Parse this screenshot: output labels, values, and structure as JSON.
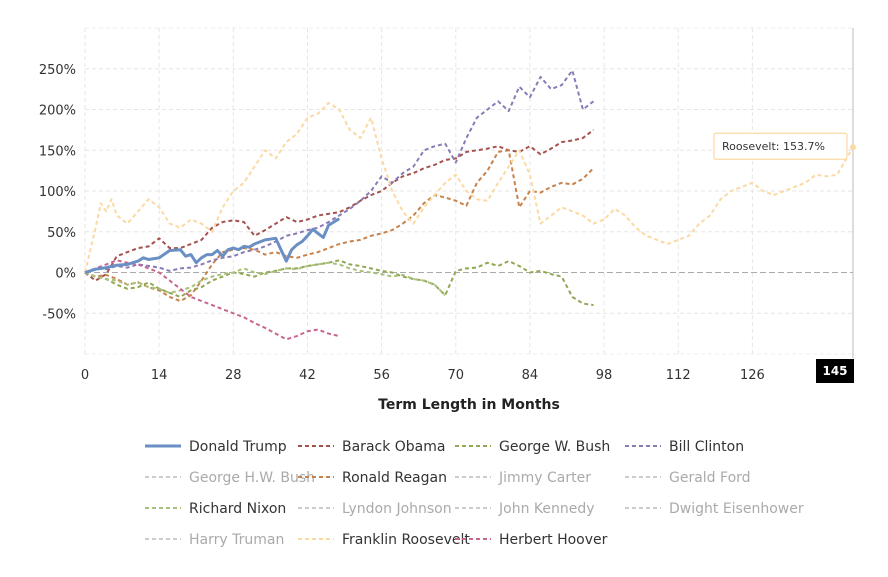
{
  "chart_data": {
    "type": "line",
    "title": "",
    "xlabel": "Term Length in Months",
    "ylabel": "",
    "xlim": [
      0,
      145
    ],
    "ylim": [
      -100,
      300
    ],
    "x_ticks": [
      0,
      14,
      28,
      42,
      56,
      70,
      84,
      98,
      112,
      126
    ],
    "y_ticks": [
      -50,
      0,
      50,
      100,
      150,
      200,
      250
    ],
    "x_tick_labels": [
      "0",
      "14",
      "28",
      "42",
      "56",
      "70",
      "84",
      "98",
      "112",
      "126"
    ],
    "y_tick_labels": [
      "-50%",
      "0%",
      "50%",
      "100%",
      "150%",
      "200%",
      "250%"
    ],
    "grid": true,
    "legend_position": "bottom",
    "tooltip": {
      "text": "Roosevelt: 153.7%",
      "series": "Franklin Roosevelt",
      "x": 145,
      "y": 153.7
    },
    "cursor_label": "145",
    "series": [
      {
        "name": "Donald Trump",
        "color": "#6a8fc4",
        "dashed": false,
        "visible": true,
        "x": [
          0,
          2,
          4,
          6,
          8,
          10,
          11,
          12,
          14,
          16,
          18,
          19,
          20,
          21,
          22,
          23,
          24,
          25,
          26,
          27,
          28,
          29,
          30,
          31,
          32,
          34,
          36,
          37,
          38,
          39,
          40,
          41,
          42,
          43,
          44,
          45,
          46,
          47,
          48
        ],
        "y": [
          0,
          4,
          6,
          9,
          10,
          14,
          18,
          16,
          18,
          27,
          28,
          20,
          22,
          12,
          18,
          22,
          22,
          27,
          20,
          28,
          30,
          28,
          32,
          31,
          35,
          40,
          42,
          28,
          14,
          28,
          34,
          38,
          45,
          53,
          48,
          43,
          58,
          62,
          66
        ]
      },
      {
        "name": "Barack Obama",
        "color": "#a5524e",
        "dashed": true,
        "visible": true,
        "x": [
          0,
          2,
          4,
          6,
          8,
          10,
          12,
          14,
          16,
          18,
          20,
          22,
          24,
          26,
          28,
          30,
          32,
          34,
          36,
          38,
          40,
          42,
          44,
          46,
          48,
          50,
          52,
          54,
          56,
          58,
          60,
          62,
          64,
          66,
          68,
          70,
          72,
          74,
          76,
          78,
          80,
          82,
          84,
          86,
          88,
          90,
          92,
          94,
          96
        ],
        "y": [
          0,
          -10,
          -2,
          20,
          25,
          30,
          32,
          42,
          30,
          30,
          35,
          40,
          55,
          62,
          64,
          62,
          45,
          52,
          60,
          68,
          62,
          65,
          70,
          72,
          74,
          80,
          88,
          95,
          100,
          110,
          118,
          122,
          128,
          132,
          138,
          140,
          148,
          150,
          152,
          155,
          150,
          148,
          155,
          145,
          152,
          160,
          162,
          165,
          175
        ]
      },
      {
        "name": "George W. Bush",
        "color": "#90a853",
        "dashed": true,
        "visible": true,
        "x": [
          0,
          2,
          4,
          6,
          8,
          10,
          12,
          14,
          16,
          18,
          20,
          22,
          24,
          26,
          28,
          30,
          32,
          34,
          36,
          38,
          40,
          42,
          44,
          46,
          48,
          50,
          52,
          54,
          56,
          58,
          60,
          62,
          64,
          66,
          68,
          70,
          72,
          74,
          76,
          78,
          80,
          82,
          84,
          86,
          88,
          90,
          92,
          94,
          96
        ],
        "y": [
          0,
          -5,
          -8,
          -15,
          -20,
          -18,
          -12,
          -20,
          -25,
          -30,
          -22,
          -18,
          -10,
          -5,
          0,
          -2,
          -5,
          0,
          2,
          5,
          5,
          8,
          10,
          12,
          15,
          10,
          8,
          5,
          2,
          0,
          -5,
          -8,
          -10,
          -15,
          -28,
          2,
          5,
          6,
          12,
          8,
          14,
          8,
          0,
          2,
          -2,
          -5,
          -30,
          -38,
          -40
        ]
      },
      {
        "name": "Bill Clinton",
        "color": "#8a7bb6",
        "dashed": true,
        "visible": true,
        "x": [
          0,
          2,
          4,
          6,
          8,
          10,
          12,
          14,
          16,
          18,
          20,
          22,
          24,
          26,
          28,
          30,
          32,
          34,
          36,
          38,
          40,
          42,
          44,
          46,
          48,
          50,
          52,
          54,
          56,
          58,
          60,
          62,
          64,
          66,
          68,
          70,
          72,
          74,
          76,
          78,
          80,
          82,
          84,
          86,
          88,
          90,
          92,
          94,
          96
        ],
        "y": [
          0,
          5,
          4,
          8,
          6,
          10,
          8,
          6,
          2,
          5,
          6,
          10,
          15,
          18,
          20,
          25,
          28,
          32,
          38,
          45,
          48,
          52,
          55,
          62,
          70,
          78,
          88,
          100,
          118,
          110,
          122,
          130,
          150,
          155,
          158,
          135,
          165,
          190,
          200,
          210,
          198,
          228,
          215,
          240,
          225,
          230,
          248,
          200,
          210
        ]
      },
      {
        "name": "George H.W. Bush",
        "color": "#bdbdbd",
        "dashed": true,
        "visible": false,
        "x": [],
        "y": []
      },
      {
        "name": "Ronald Reagan",
        "color": "#c7814a",
        "dashed": true,
        "visible": true,
        "x": [
          0,
          2,
          4,
          6,
          8,
          10,
          12,
          14,
          16,
          18,
          20,
          22,
          24,
          26,
          28,
          30,
          32,
          34,
          36,
          38,
          40,
          42,
          44,
          46,
          48,
          50,
          52,
          54,
          56,
          58,
          60,
          62,
          64,
          66,
          68,
          70,
          72,
          74,
          76,
          78,
          80,
          82,
          84,
          86,
          88,
          90,
          92,
          94,
          96
        ],
        "y": [
          0,
          -5,
          -3,
          -8,
          -15,
          -12,
          -18,
          -22,
          -30,
          -35,
          -28,
          -10,
          10,
          25,
          28,
          30,
          28,
          22,
          25,
          20,
          18,
          22,
          25,
          30,
          35,
          38,
          40,
          45,
          48,
          52,
          60,
          70,
          85,
          95,
          92,
          88,
          82,
          110,
          125,
          148,
          150,
          80,
          100,
          98,
          105,
          110,
          108,
          115,
          128
        ]
      },
      {
        "name": "Jimmy Carter",
        "color": "#bdbdbd",
        "dashed": true,
        "visible": false,
        "x": [],
        "y": []
      },
      {
        "name": "Gerald Ford",
        "color": "#bdbdbd",
        "dashed": true,
        "visible": false,
        "x": [],
        "y": []
      },
      {
        "name": "Richard Nixon",
        "color": "#a9c07a",
        "dashed": true,
        "visible": true,
        "x": [
          0,
          2,
          4,
          6,
          8,
          10,
          12,
          14,
          16,
          18,
          20,
          22,
          24,
          26,
          28,
          30,
          32,
          34,
          36,
          38,
          40,
          42,
          44,
          46,
          48,
          50,
          52,
          54,
          56,
          58,
          60,
          62,
          64,
          66,
          68
        ],
        "y": [
          0,
          -5,
          -8,
          -10,
          -15,
          -12,
          -18,
          -20,
          -25,
          -22,
          -18,
          -10,
          -5,
          -2,
          0,
          5,
          0,
          -2,
          2,
          5,
          4,
          8,
          10,
          12,
          10,
          5,
          2,
          0,
          -2,
          -5,
          -3,
          -8,
          -10,
          -15,
          -28
        ]
      },
      {
        "name": "Lyndon Johnson",
        "color": "#bdbdbd",
        "dashed": true,
        "visible": false,
        "x": [],
        "y": []
      },
      {
        "name": "John Kennedy",
        "color": "#bdbdbd",
        "dashed": true,
        "visible": false,
        "x": [],
        "y": []
      },
      {
        "name": "Dwight Eisenhower",
        "color": "#bdbdbd",
        "dashed": true,
        "visible": false,
        "x": [],
        "y": []
      },
      {
        "name": "Harry Truman",
        "color": "#bdbdbd",
        "dashed": true,
        "visible": false,
        "x": [],
        "y": []
      },
      {
        "name": "Franklin Roosevelt",
        "color": "#fcd9a2",
        "dashed": true,
        "visible": true,
        "x": [
          0,
          2,
          3,
          4,
          5,
          6,
          8,
          10,
          12,
          14,
          16,
          18,
          20,
          22,
          24,
          26,
          28,
          30,
          32,
          34,
          36,
          38,
          40,
          42,
          44,
          46,
          48,
          50,
          52,
          54,
          56,
          58,
          60,
          62,
          64,
          66,
          68,
          70,
          72,
          74,
          76,
          78,
          80,
          82,
          84,
          86,
          88,
          90,
          92,
          94,
          96,
          98,
          100,
          102,
          104,
          106,
          108,
          110,
          112,
          114,
          116,
          118,
          120,
          122,
          124,
          126,
          128,
          130,
          132,
          134,
          136,
          138,
          140,
          142,
          145
        ],
        "y": [
          0,
          55,
          85,
          75,
          90,
          70,
          60,
          75,
          90,
          80,
          60,
          55,
          65,
          60,
          50,
          80,
          100,
          110,
          130,
          150,
          140,
          160,
          170,
          190,
          195,
          208,
          200,
          175,
          165,
          190,
          140,
          100,
          75,
          60,
          80,
          95,
          110,
          120,
          100,
          90,
          88,
          110,
          130,
          150,
          120,
          60,
          70,
          80,
          75,
          70,
          60,
          65,
          78,
          70,
          55,
          45,
          40,
          35,
          40,
          45,
          60,
          70,
          90,
          100,
          105,
          110,
          100,
          95,
          100,
          105,
          110,
          120,
          118,
          120,
          153.7
        ]
      },
      {
        "name": "Herbert Hoover",
        "color": "#c96591",
        "dashed": true,
        "visible": true,
        "x": [
          0,
          2,
          4,
          6,
          8,
          10,
          12,
          14,
          16,
          18,
          20,
          22,
          24,
          26,
          28,
          30,
          32,
          34,
          36,
          38,
          40,
          42,
          44,
          46,
          48
        ],
        "y": [
          0,
          5,
          10,
          15,
          12,
          10,
          5,
          0,
          -10,
          -20,
          -30,
          -35,
          -40,
          -45,
          -50,
          -55,
          -62,
          -68,
          -75,
          -82,
          -78,
          -72,
          -70,
          -75,
          -78
        ]
      }
    ]
  }
}
